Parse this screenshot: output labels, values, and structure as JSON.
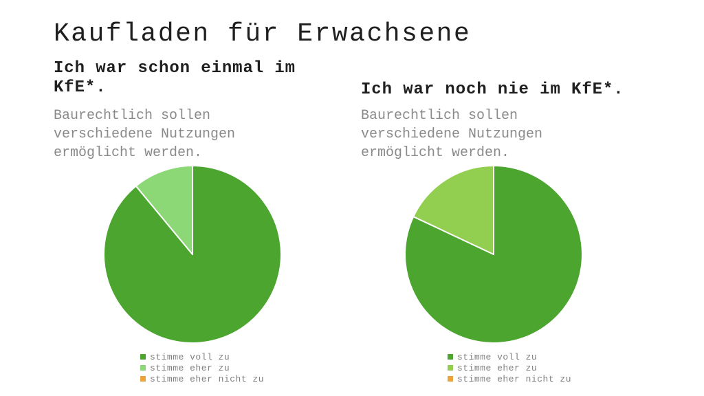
{
  "slide": {
    "title": "Kaufladen für Erwachsene"
  },
  "chart_data": [
    {
      "type": "pie",
      "title": "Ich war schon einmal im KfE*.",
      "subtitle": "Baurechtlich sollen verschiedene Nutzungen ermöglicht werden.",
      "labels": [
        "stimme voll zu",
        "stimme eher zu",
        "stimme eher nicht zu"
      ],
      "values": [
        89,
        11,
        0
      ],
      "colors": [
        "#4BA52F",
        "#8CD877",
        "#EDA33D"
      ],
      "legend_position": "bottom",
      "legend": [
        {
          "label": "stimme voll zu",
          "color": "#4BA52F"
        },
        {
          "label": "stimme eher zu",
          "color": "#8CD877"
        },
        {
          "label": "stimme eher nicht zu",
          "color": "#EDA33D"
        }
      ]
    },
    {
      "type": "pie",
      "title": "Ich war noch nie im KfE*.",
      "subtitle": "Baurechtlich sollen verschiedene Nutzungen ermöglicht werden.",
      "labels": [
        "stimme voll zu",
        "stimme eher zu",
        "stimme eher nicht zu"
      ],
      "values": [
        82,
        18,
        0
      ],
      "colors": [
        "#4BA52F",
        "#92CE4F",
        "#EDA33D"
      ],
      "legend_position": "bottom",
      "legend": [
        {
          "label": "stimme voll zu",
          "color": "#4BA52F"
        },
        {
          "label": "stimme eher zu",
          "color": "#92CE4F"
        },
        {
          "label": "stimme eher nicht zu",
          "color": "#EDA33D"
        }
      ]
    }
  ]
}
